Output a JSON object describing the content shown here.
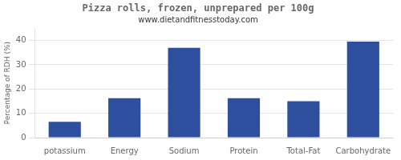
{
  "chart_data": {
    "type": "bar",
    "title": "Pizza rolls, frozen, unprepared per 100g",
    "subtitle": "www.dietandfitnesstoday.com",
    "categories": [
      "potassium",
      "Energy",
      "Sodium",
      "Protein",
      "Total-Fat",
      "Carbohydrate"
    ],
    "values": [
      6.5,
      16.2,
      37.0,
      16.2,
      15.0,
      39.5
    ],
    "color": "#2d4f9e",
    "ylabel": "Percentage of RDH (%)",
    "ylim": [
      0,
      45
    ],
    "yticks": [
      0,
      10,
      20,
      30,
      40
    ],
    "grid": true
  }
}
